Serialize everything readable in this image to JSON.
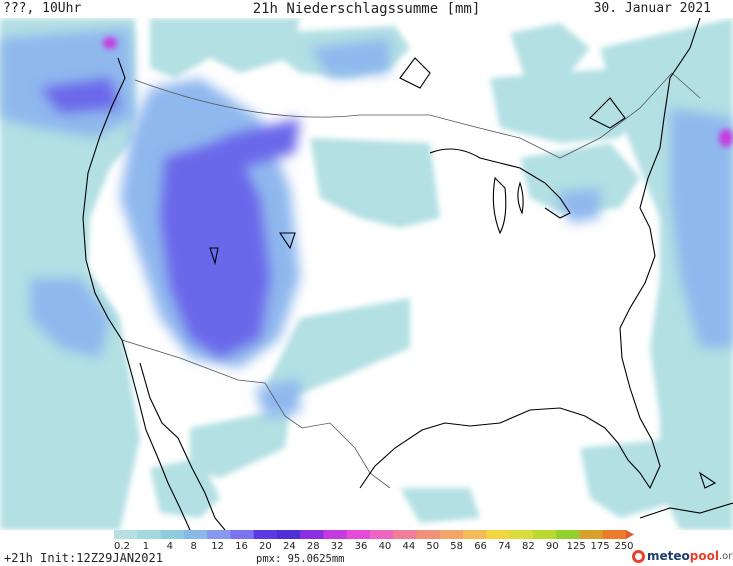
{
  "header": {
    "left": "???, 10Uhr",
    "title": "21h Niederschlagssumme [mm]",
    "date": "30. Januar 2021"
  },
  "legend": {
    "ticks": [
      "0.2",
      "1",
      "4",
      "8",
      "12",
      "16",
      "20",
      "24",
      "28",
      "32",
      "36",
      "40",
      "44",
      "50",
      "58",
      "66",
      "74",
      "82",
      "90",
      "125",
      "175",
      "250"
    ],
    "colors": [
      "#b6e0e1",
      "#a3d9de",
      "#90cddc",
      "#8ab8e8",
      "#8898ef",
      "#7a74f0",
      "#5b3ae6",
      "#4e2ed6",
      "#8a2fe1",
      "#c53ade",
      "#e64bd7",
      "#ee66c2",
      "#f07e98",
      "#f0917a",
      "#f2a46a",
      "#f4bc56",
      "#f2d540",
      "#d9dc3a",
      "#b9d930",
      "#93d02d",
      "#d7a12b",
      "#ee7a2b"
    ],
    "arrow_color": "#e25b2e"
  },
  "footer": {
    "run": "+21h Init:12Z29JAN2021",
    "pmx": "pmx: 95.0625mm"
  },
  "logo": {
    "part1": "meteo",
    "part2": "pool",
    "part3": ".org"
  },
  "colors": {
    "light_precip": "#b3e0e3",
    "moderate_precip": "#8fb8ee",
    "heavy_precip": "#6a67ea",
    "extreme_precip": "#c53ade",
    "coastline": "#000000",
    "border": "#555555"
  }
}
